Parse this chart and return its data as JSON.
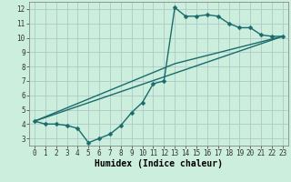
{
  "title": "",
  "xlabel": "Humidex (Indice chaleur)",
  "bg_color": "#cceedd",
  "grid_color": "#b0c8c8",
  "line_color": "#1a6b6b",
  "xlim": [
    -0.5,
    23.5
  ],
  "ylim": [
    2.5,
    12.5
  ],
  "xticks": [
    0,
    1,
    2,
    3,
    4,
    5,
    6,
    7,
    8,
    9,
    10,
    11,
    12,
    13,
    14,
    15,
    16,
    17,
    18,
    19,
    20,
    21,
    22,
    23
  ],
  "yticks": [
    3,
    4,
    5,
    6,
    7,
    8,
    9,
    10,
    11,
    12
  ],
  "line1_x": [
    0,
    1,
    2,
    3,
    4,
    5,
    6,
    7,
    8,
    9,
    10,
    11,
    12,
    13,
    14,
    15,
    16,
    17,
    18,
    19,
    20,
    21,
    22,
    23
  ],
  "line1_y": [
    4.2,
    4.0,
    4.0,
    3.9,
    3.7,
    2.7,
    3.0,
    3.3,
    3.9,
    4.8,
    5.5,
    6.8,
    7.0,
    12.1,
    11.5,
    11.5,
    11.6,
    11.5,
    11.0,
    10.7,
    10.7,
    10.2,
    10.1,
    10.1
  ],
  "line2_x": [
    0,
    23
  ],
  "line2_y": [
    4.2,
    10.1
  ],
  "line3_x": [
    0,
    13,
    23
  ],
  "line3_y": [
    4.2,
    8.2,
    10.1
  ],
  "marker_size": 2.5,
  "line_width": 1.0,
  "tick_fontsize": 5.5,
  "xlabel_fontsize": 7.0
}
